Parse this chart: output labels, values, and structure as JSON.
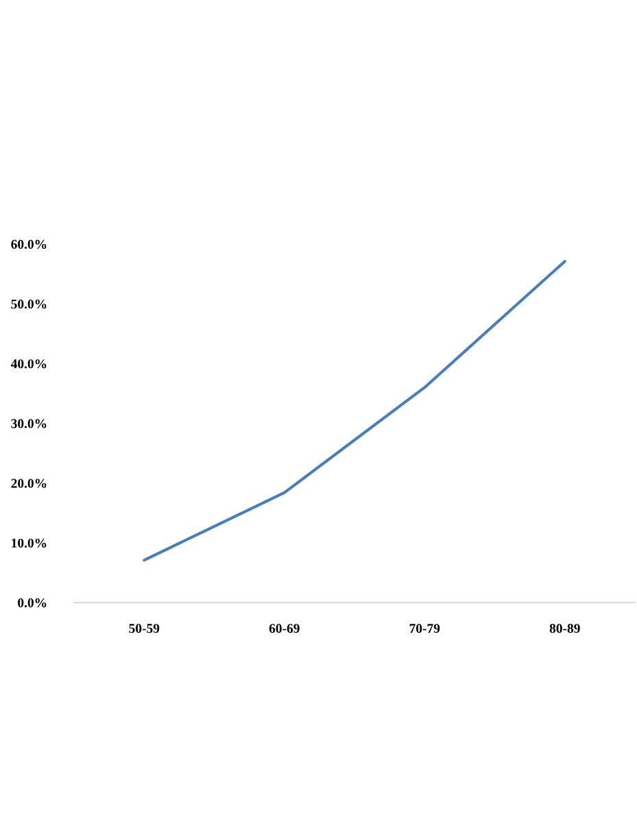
{
  "chart_data": {
    "type": "line",
    "categories": [
      "50-59",
      "60-69",
      "70-79",
      "80-89"
    ],
    "series": [
      {
        "color": "#4a7ebb",
        "values": [
          7.1,
          18.4,
          36.0,
          57.1
        ]
      }
    ],
    "ylim": [
      0,
      60
    ],
    "yticks": [
      {
        "value": 0,
        "label": "0.0%"
      },
      {
        "value": 10,
        "label": "10.0%"
      },
      {
        "value": 20,
        "label": "20.0%"
      },
      {
        "value": 30,
        "label": "30.0%"
      },
      {
        "value": 40,
        "label": "40.0%"
      },
      {
        "value": 50,
        "label": "50.0%"
      },
      {
        "value": 60,
        "label": "60.0%"
      }
    ],
    "grid": false,
    "legend": false,
    "marker": "none",
    "line_style": "solid"
  }
}
